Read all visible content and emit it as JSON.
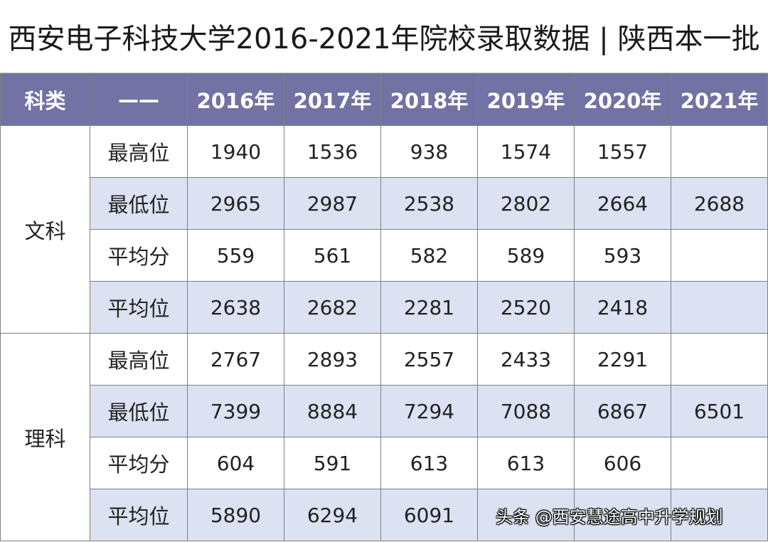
{
  "title": "西安电子科技大学2016-2021年院校录取数据 | 陕西本一批",
  "header": {
    "subject": "科类",
    "dash": "——",
    "years": [
      "2016年",
      "2017年",
      "2018年",
      "2019年",
      "2020年",
      "2021年"
    ]
  },
  "sections": [
    {
      "subject": "文科",
      "rows": [
        {
          "label": "最高位",
          "values": [
            "1940",
            "1536",
            "938",
            "1574",
            "1557",
            ""
          ]
        },
        {
          "label": "最低位",
          "values": [
            "2965",
            "2987",
            "2538",
            "2802",
            "2664",
            "2688"
          ]
        },
        {
          "label": "平均分",
          "values": [
            "559",
            "561",
            "582",
            "589",
            "593",
            ""
          ]
        },
        {
          "label": "平均位",
          "values": [
            "2638",
            "2682",
            "2281",
            "2520",
            "2418",
            ""
          ]
        }
      ]
    },
    {
      "subject": "理科",
      "rows": [
        {
          "label": "最高位",
          "values": [
            "2767",
            "2893",
            "2557",
            "2433",
            "2291",
            ""
          ]
        },
        {
          "label": "最低位",
          "values": [
            "7399",
            "8884",
            "7294",
            "7088",
            "6867",
            "6501"
          ]
        },
        {
          "label": "平均分",
          "values": [
            "604",
            "591",
            "613",
            "613",
            "606",
            ""
          ]
        },
        {
          "label": "平均位",
          "values": [
            "5890",
            "6294",
            "6091",
            "",
            "",
            ""
          ]
        }
      ]
    }
  ],
  "watermark": "头条 @西安慧途高中升学规划",
  "colors": {
    "header_bg": "#7272a4",
    "shade_row": "#dde2f2"
  }
}
